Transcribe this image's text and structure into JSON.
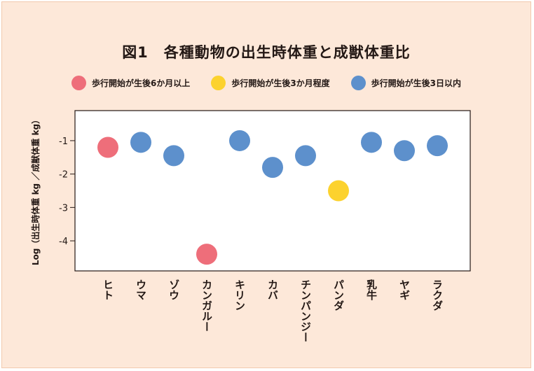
{
  "chart_data": {
    "type": "scatter",
    "title": "図1　各種動物の出生時体重と成獣体重比",
    "ylabel": "Log（出生時体重 kg ／成獣体重 kg）",
    "ylim": [
      -4.9,
      -0.1
    ],
    "yticks": [
      -1,
      -2,
      -3,
      -4
    ],
    "ytick_labels": [
      "-1",
      "-2",
      "-3",
      "-4"
    ],
    "categories": [
      "ヒト",
      "ウマ",
      "ゾウ",
      "カンガルー",
      "キリン",
      "カバ",
      "チンパンジー",
      "パンダ",
      "乳牛",
      "ヤギ",
      "ラクダ"
    ],
    "series": [
      {
        "name": "歩行開始が生後6か月以上",
        "color": "#ee6e7a",
        "points": [
          {
            "category": "ヒト",
            "y": -1.2
          },
          {
            "category": "カンガルー",
            "y": -4.4
          }
        ]
      },
      {
        "name": "歩行開始が生後3か月程度",
        "color": "#fcd22e",
        "points": [
          {
            "category": "パンダ",
            "y": -2.5
          }
        ]
      },
      {
        "name": "歩行開始が生後3日以内",
        "color": "#5d90cc",
        "points": [
          {
            "category": "ウマ",
            "y": -1.05
          },
          {
            "category": "ゾウ",
            "y": -1.45
          },
          {
            "category": "キリン",
            "y": -1.0
          },
          {
            "category": "カバ",
            "y": -1.8
          },
          {
            "category": "チンパンジー",
            "y": -1.45
          },
          {
            "category": "乳牛",
            "y": -1.05
          },
          {
            "category": "ヤギ",
            "y": -1.3
          },
          {
            "category": "ラクダ",
            "y": -1.15
          }
        ]
      }
    ],
    "legend_position": "top",
    "grid": false
  }
}
